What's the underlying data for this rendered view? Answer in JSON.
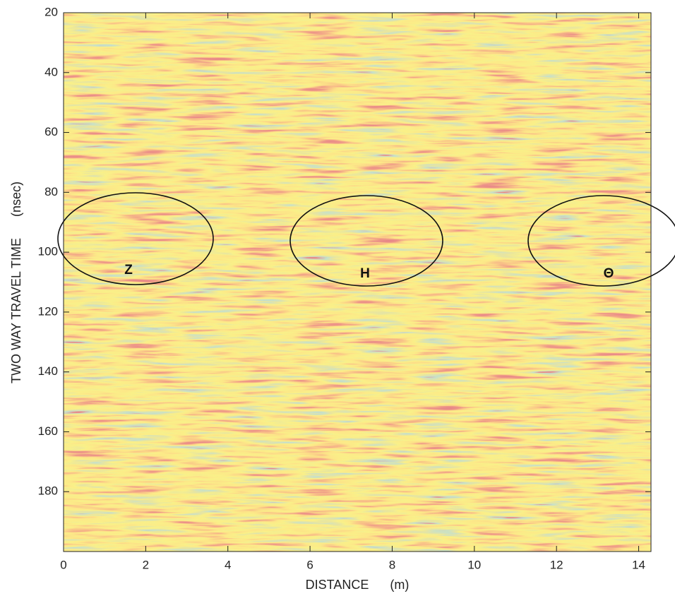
{
  "chart_data": {
    "type": "radargram",
    "xlabel": "DISTANCE      (m)",
    "ylabel": "TWO WAY TRAVEL TIME      (nsec)",
    "xlim": [
      0,
      14.3
    ],
    "xticks": [
      0,
      2,
      4,
      6,
      8,
      10,
      12,
      14
    ],
    "ylim": [
      20,
      200
    ],
    "yticks": [
      20,
      40,
      60,
      80,
      100,
      120,
      140,
      160,
      180
    ],
    "y_direction": "down",
    "annotations": [
      "Z",
      "H",
      "Θ"
    ]
  }
}
